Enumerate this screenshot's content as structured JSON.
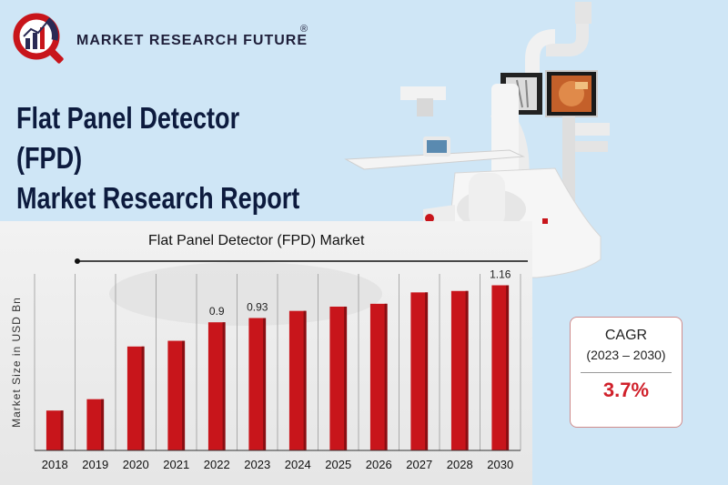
{
  "brand": {
    "name": "MARKET RESEARCH FUTURE",
    "reg": "®"
  },
  "report": {
    "title_line1": "Flat Panel Detector (FPD)",
    "title_line2": "Market Research Report"
  },
  "cagr": {
    "label": "CAGR",
    "period": "(2023 – 2030)",
    "value": "3.7%"
  },
  "colors": {
    "bar": "#c8151b",
    "bar_dark": "#8a0e12",
    "accent": "#d0202a",
    "background": "#cfe6f6"
  },
  "chart_data": {
    "type": "bar",
    "title": "Flat Panel Detector (FPD) Market",
    "ylabel": "Market Size in USD Bn",
    "xlabel": "",
    "categories": [
      "2018",
      "2019",
      "2020",
      "2021",
      "2022",
      "2023",
      "2024",
      "2025",
      "2026",
      "2027",
      "2028",
      "2030"
    ],
    "values": [
      0.28,
      0.36,
      0.73,
      0.77,
      0.9,
      0.93,
      0.98,
      1.01,
      1.03,
      1.11,
      1.12,
      1.16
    ],
    "data_labels": {
      "4": "0.9",
      "5": "0.93",
      "11": "1.16"
    },
    "ylim": [
      0,
      1.24
    ],
    "grid": "vertical"
  }
}
